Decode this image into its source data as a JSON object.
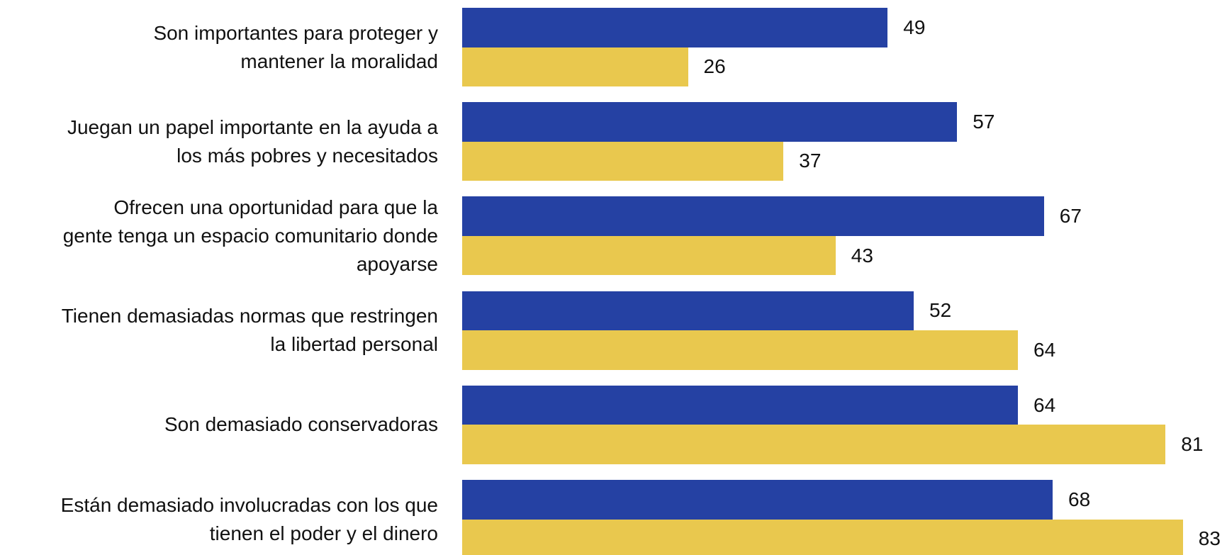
{
  "chart_data": {
    "type": "bar",
    "orientation": "horizontal",
    "categories": [
      "Son importantes para proteger y\nmantener la moralidad",
      "Juegan un papel importante en la ayuda a\nlos más pobres y necesitados",
      "Ofrecen una oportunidad para que la\ngente tenga un espacio comunitario donde\napoyarse",
      "Tienen demasiadas normas que restringen\nla libertad personal",
      "Son demasiado conservadoras",
      "Están demasiado involucradas con los que\ntienen el poder y el dinero"
    ],
    "series": [
      {
        "color": "#2541a3",
        "values": [
          49,
          57,
          67,
          52,
          64,
          68
        ]
      },
      {
        "color": "#e9c84e",
        "values": [
          26,
          37,
          43,
          64,
          81,
          83
        ]
      }
    ]
  }
}
